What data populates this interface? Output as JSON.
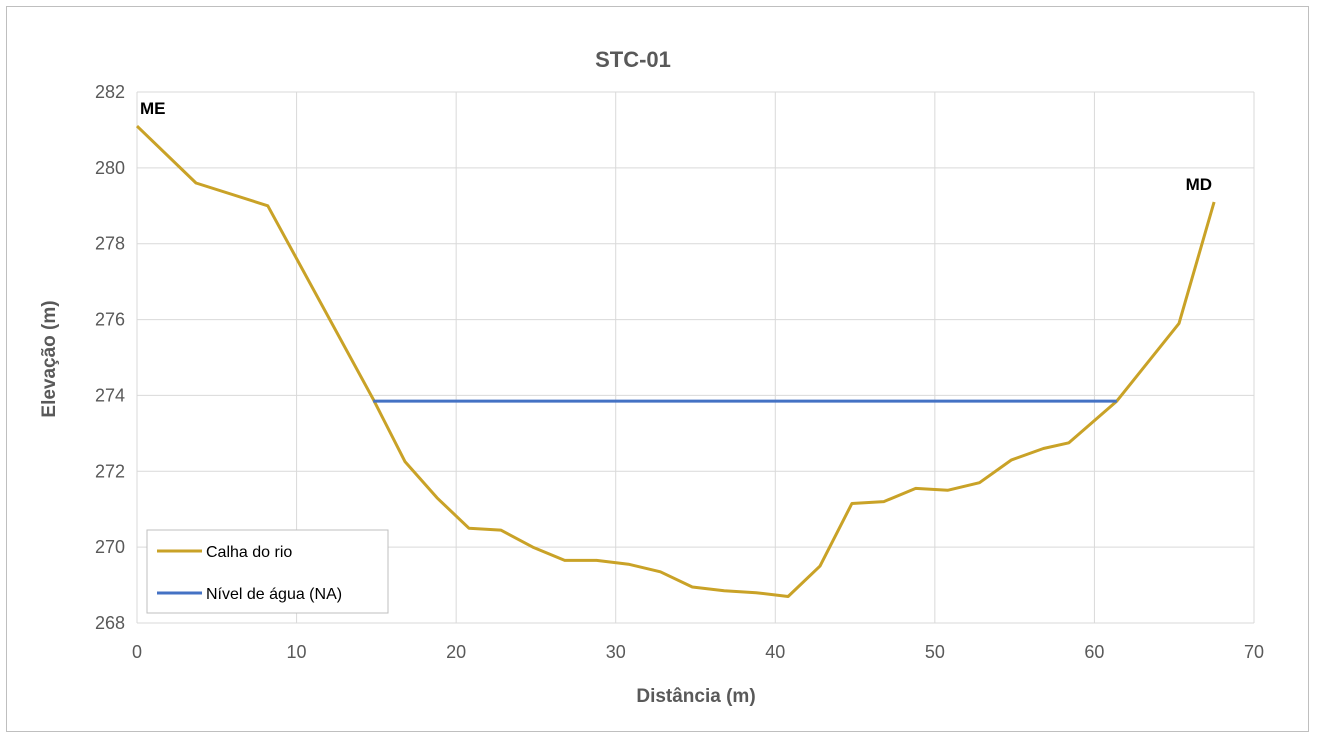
{
  "chart_data": {
    "type": "line",
    "title": "STC-01",
    "xlabel": "Distância (m)",
    "ylabel": "Elevação (m)",
    "xlim": [
      0,
      70
    ],
    "ylim": [
      268,
      282
    ],
    "xticks": [
      0,
      10,
      20,
      30,
      40,
      50,
      60,
      70
    ],
    "yticks": [
      268,
      270,
      272,
      274,
      276,
      278,
      280,
      282
    ],
    "grid": true,
    "legend_position": "bottom-left",
    "series": [
      {
        "name": "Calha do rio",
        "color": "#c9a227",
        "x": [
          0,
          3.7,
          8.2,
          14.8,
          16.8,
          18.8,
          20.8,
          22.8,
          24.8,
          26.8,
          28.8,
          30.8,
          32.8,
          34.8,
          36.8,
          38.8,
          40.8,
          42.8,
          44.8,
          46.8,
          48.8,
          50.8,
          52.8,
          54.8,
          56.8,
          58.4,
          61.4,
          65.3,
          67.5
        ],
        "y": [
          281.1,
          279.6,
          279.0,
          273.9,
          272.25,
          271.3,
          270.5,
          270.45,
          270.0,
          269.65,
          269.65,
          269.55,
          269.35,
          268.95,
          268.85,
          268.8,
          268.7,
          269.5,
          271.15,
          271.2,
          271.55,
          271.5,
          271.7,
          272.3,
          272.6,
          272.75,
          273.85,
          275.9,
          279.1
        ]
      },
      {
        "name": "Nível de água (NA)",
        "color": "#4472c4",
        "x": [
          14.8,
          61.4
        ],
        "y": [
          273.85,
          273.85
        ]
      }
    ],
    "annotations": [
      {
        "text": "ME",
        "x": 0,
        "y": 281.1
      },
      {
        "text": "MD",
        "x": 67.5,
        "y": 279.1
      }
    ]
  }
}
